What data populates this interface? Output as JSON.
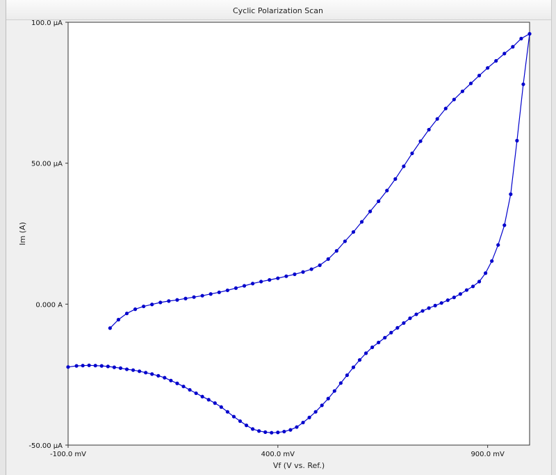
{
  "chart_data": {
    "type": "line",
    "title": "Cyclic Polarization Scan",
    "xlabel": "Vf (V vs. Ref.)",
    "ylabel": "Im (A)",
    "xlim": [
      -100,
      1000
    ],
    "ylim": [
      -50,
      100
    ],
    "x_unit": "mV",
    "y_unit": "µA",
    "x_ticks": [
      {
        "value": -100,
        "label": "-100.0 mV"
      },
      {
        "value": 400,
        "label": "400.0 mV"
      },
      {
        "value": 900,
        "label": "900.0 mV"
      }
    ],
    "y_ticks": [
      {
        "value": 100,
        "label": "100.0 µA"
      },
      {
        "value": 50,
        "label": "50.00 µA"
      },
      {
        "value": 0,
        "label": "0.000 A"
      },
      {
        "value": -50,
        "label": "-50.00 µA"
      }
    ],
    "grid": false,
    "series": [
      {
        "color": "#0000cc",
        "x": [
          0,
          20,
          40,
          60,
          80,
          100,
          120,
          140,
          160,
          180,
          200,
          220,
          240,
          260,
          280,
          300,
          320,
          340,
          360,
          380,
          400,
          420,
          440,
          460,
          480,
          500,
          520,
          540,
          560,
          580,
          600,
          620,
          640,
          660,
          680,
          700,
          720,
          740,
          760,
          780,
          800,
          820,
          840,
          860,
          880,
          900,
          920,
          940,
          960,
          980,
          1000,
          985,
          970,
          955,
          940,
          925,
          910,
          895,
          880,
          865,
          850,
          835,
          820,
          805,
          790,
          775,
          760,
          745,
          730,
          715,
          700,
          685,
          670,
          655,
          640,
          625,
          610,
          595,
          580,
          565,
          550,
          535,
          520,
          505,
          490,
          475,
          460,
          445,
          430,
          415,
          400,
          385,
          370,
          355,
          340,
          325,
          310,
          295,
          280,
          265,
          250,
          235,
          220,
          205,
          190,
          175,
          160,
          145,
          130,
          115,
          100,
          85,
          70,
          55,
          40,
          25,
          10,
          -5,
          -20,
          -35,
          -50,
          -65,
          -80,
          -100
        ],
        "y": [
          -8.5,
          -5.5,
          -3.3,
          -1.8,
          -0.8,
          -0.1,
          0.6,
          1.1,
          1.5,
          2,
          2.5,
          3,
          3.6,
          4.2,
          4.9,
          5.7,
          6.5,
          7.3,
          8,
          8.6,
          9.2,
          9.9,
          10.6,
          11.4,
          12.4,
          13.8,
          16,
          18.9,
          22.3,
          25.6,
          29.2,
          32.9,
          36.5,
          40.3,
          44.4,
          48.9,
          53.5,
          57.8,
          61.9,
          65.7,
          69.4,
          72.6,
          75.5,
          78.3,
          81.1,
          83.8,
          86.3,
          88.9,
          91.3,
          94.2,
          95.9,
          78,
          58,
          39,
          28,
          21,
          15.3,
          11,
          8,
          6.3,
          5,
          3.6,
          2.4,
          1.4,
          0.4,
          -0.5,
          -1.4,
          -2.4,
          -3.6,
          -5,
          -6.7,
          -8.4,
          -10.1,
          -11.9,
          -13.6,
          -15.3,
          -17.4,
          -19.8,
          -22.4,
          -25.2,
          -28,
          -30.8,
          -33.5,
          -35.9,
          -38.2,
          -40.2,
          -42,
          -43.6,
          -44.6,
          -45.2,
          -45.5,
          -45.6,
          -45.4,
          -45,
          -44.3,
          -43,
          -41.5,
          -39.9,
          -38.2,
          -36.5,
          -35.1,
          -33.9,
          -32.8,
          -31.6,
          -30.4,
          -29.2,
          -28.1,
          -27.1,
          -26.1,
          -25.4,
          -24.8,
          -24.3,
          -23.8,
          -23.4,
          -23.1,
          -22.7,
          -22.4,
          -22.1,
          -21.9,
          -21.8,
          -21.7,
          -21.8,
          -21.9,
          -22.3
        ]
      }
    ]
  }
}
